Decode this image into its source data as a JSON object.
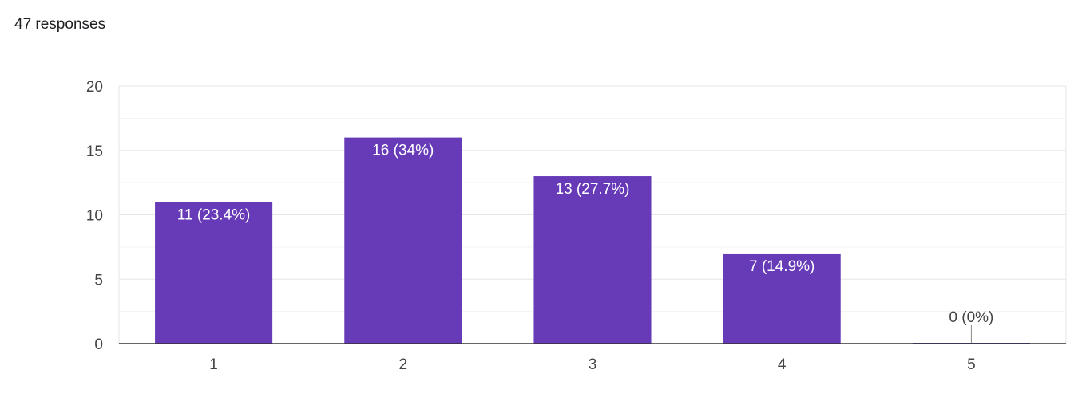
{
  "header": {
    "responses_text": "47 responses"
  },
  "chart_data": {
    "type": "bar",
    "categories": [
      "1",
      "2",
      "3",
      "4",
      "5"
    ],
    "values": [
      11,
      16,
      13,
      7,
      0
    ],
    "data_labels": [
      "11 (23.4%)",
      "16 (34%)",
      "13 (27.7%)",
      "7 (14.9%)",
      "0 (0%)"
    ],
    "title": "",
    "xlabel": "",
    "ylabel": "",
    "ylim": [
      0,
      20
    ],
    "yticks": [
      0,
      5,
      10,
      15,
      20
    ],
    "grid": true,
    "legend": "none",
    "bar_color": "#673ab7",
    "gridline_color": "#e6e6e6",
    "axis_color": "#333333"
  }
}
